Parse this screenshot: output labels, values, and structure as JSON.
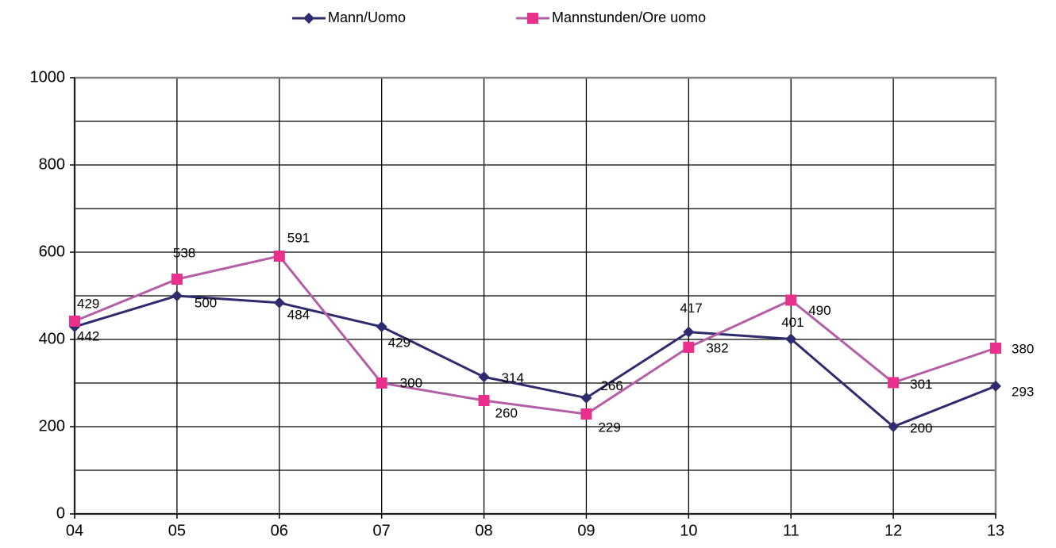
{
  "chart_data": {
    "type": "line",
    "categories": [
      "04",
      "05",
      "06",
      "07",
      "08",
      "09",
      "10",
      "11",
      "12",
      "13"
    ],
    "series": [
      {
        "name": "Mann/Uomo",
        "color": "#2e2b6e",
        "marker": "diamond",
        "values": [
          429,
          500,
          484,
          429,
          314,
          266,
          417,
          401,
          200,
          293
        ]
      },
      {
        "name": "Mannstunden/Ore uomo",
        "color": "#b35ea6",
        "marker_color": "#e8308c",
        "marker": "square",
        "values": [
          442,
          538,
          591,
          300,
          260,
          229,
          382,
          490,
          301,
          380
        ]
      }
    ],
    "ylim": [
      0,
      1000
    ],
    "yticks": [
      0,
      200,
      400,
      600,
      800,
      1000
    ],
    "ygrid": [
      100,
      300,
      500,
      700,
      900
    ],
    "grid": true,
    "legend": "top"
  }
}
